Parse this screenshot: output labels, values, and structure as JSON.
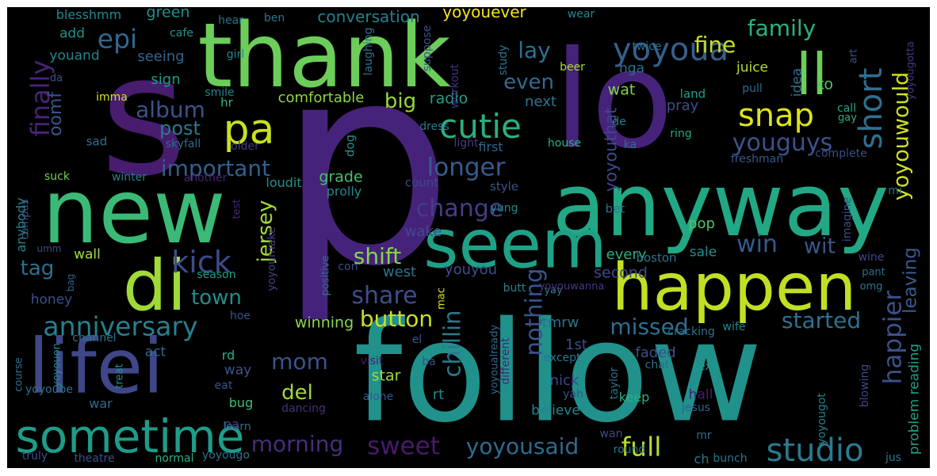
{
  "wordcloud": {
    "words": [
      {
        "t": "p",
        "c": "#46237a"
      },
      {
        "t": "follow",
        "c": "#21918c"
      },
      {
        "t": "s",
        "c": "#481c6e"
      },
      {
        "t": "lo",
        "c": "#46237a"
      },
      {
        "t": "thank",
        "c": "#6ccd5a"
      },
      {
        "t": "new",
        "c": "#3aba76"
      },
      {
        "t": "anyway",
        "c": "#22a884"
      },
      {
        "t": "happen",
        "c": "#c2df23"
      },
      {
        "t": "lifei",
        "c": "#3f4788"
      },
      {
        "t": "seem",
        "c": "#1fa187"
      },
      {
        "t": "di",
        "c": "#a0da39"
      },
      {
        "t": "sometime",
        "c": "#1e9c89"
      },
      {
        "t": "ll",
        "c": "#6ece58"
      },
      {
        "t": "pa",
        "c": "#c8e020"
      },
      {
        "t": "yoyoua",
        "c": "#355f8d"
      },
      {
        "t": "cutie",
        "c": "#2ab07f"
      },
      {
        "t": "snap",
        "c": "#dde318"
      },
      {
        "t": "short",
        "c": "#2d708e"
      },
      {
        "t": "studio",
        "c": "#297b8e"
      },
      {
        "t": "anniversary",
        "c": "#277f8e"
      },
      {
        "t": "kick",
        "c": "#3e4c8a"
      },
      {
        "t": "youguys",
        "c": "#3b528b"
      },
      {
        "t": "yoyouwould",
        "c": "#d0e11c"
      },
      {
        "t": "epi",
        "c": "#31688e"
      },
      {
        "t": "longer",
        "c": "#365c8d"
      },
      {
        "t": "finally",
        "c": "#482475"
      },
      {
        "t": "important",
        "c": "#345f8d"
      },
      {
        "t": "change",
        "c": "#433e85"
      },
      {
        "t": "button",
        "c": "#cae11f"
      },
      {
        "t": "happier",
        "c": "#3b528b"
      },
      {
        "t": "share",
        "c": "#3d4e8a"
      },
      {
        "t": "morning",
        "c": "#472d7b"
      },
      {
        "t": "sweet",
        "c": "#481a6c"
      },
      {
        "t": "yoyousaid",
        "c": "#2f6b8e"
      },
      {
        "t": "full",
        "c": "#b5de2b"
      },
      {
        "t": "missed",
        "c": "#2e6e8e"
      },
      {
        "t": "started",
        "c": "#2c728e"
      },
      {
        "t": "leaving",
        "c": "#38598c"
      },
      {
        "t": "nothing",
        "c": "#3a548c"
      },
      {
        "t": "chillin",
        "c": "#2a788e"
      },
      {
        "t": "shift",
        "c": "#85d54a"
      },
      {
        "t": "jersey",
        "c": "#a5db36"
      },
      {
        "t": "mom",
        "c": "#3b528b"
      },
      {
        "t": "del",
        "c": "#a2da37"
      },
      {
        "t": "town",
        "c": "#228d8d"
      },
      {
        "t": "post",
        "c": "#29798e"
      },
      {
        "t": "family",
        "c": "#2db27d"
      },
      {
        "t": "album",
        "c": "#3b528b"
      },
      {
        "t": "fine",
        "c": "#c8e020"
      },
      {
        "t": "tag",
        "c": "#2e6f8e"
      },
      {
        "t": "win",
        "c": "#38598c"
      },
      {
        "t": "wit",
        "c": "#39568c"
      },
      {
        "t": "even",
        "c": "#2f6c8e"
      },
      {
        "t": "lay",
        "c": "#2d718e"
      },
      {
        "t": "big",
        "c": "#95d840"
      },
      {
        "t": "oomf",
        "c": "#39558c"
      },
      {
        "t": "yoyouthat",
        "c": "#3f4889"
      },
      {
        "t": "problem reading",
        "c": "#1f9f88"
      },
      {
        "t": "conversation",
        "c": "#277f8e"
      },
      {
        "t": "yoyouever",
        "c": "#f1e51d"
      },
      {
        "t": "green",
        "c": "#1f948c"
      },
      {
        "t": "blesshmm",
        "c": "#238a8d"
      },
      {
        "t": "add",
        "c": "#20928c"
      },
      {
        "t": "youand",
        "c": "#25848e"
      },
      {
        "t": "seeing",
        "c": "#32658e"
      },
      {
        "t": "sign",
        "c": "#1e9b8a"
      },
      {
        "t": "comfortable",
        "c": "#8ed645"
      },
      {
        "t": "radio",
        "c": "#1fa088"
      },
      {
        "t": "next",
        "c": "#2a768e"
      },
      {
        "t": "pray",
        "c": "#3d4d8a"
      },
      {
        "t": "wat",
        "c": "#83d34b"
      },
      {
        "t": "nga",
        "c": "#2c718e"
      },
      {
        "t": "juice",
        "c": "#b2dd2d"
      },
      {
        "t": "idea",
        "c": "#2c728e"
      },
      {
        "t": "ko",
        "c": "#52c569"
      },
      {
        "t": "cafe",
        "c": "#1f988b"
      },
      {
        "t": "wear",
        "c": "#24868e"
      },
      {
        "t": "hear",
        "c": "#2c728e"
      },
      {
        "t": "ben",
        "c": "#2a768e"
      },
      {
        "t": "girl",
        "c": "#25858e"
      },
      {
        "t": "twice",
        "c": "#2e6e8e"
      },
      {
        "t": "second",
        "c": "#3e4a89"
      },
      {
        "t": "grade",
        "c": "#4ac16d"
      },
      {
        "t": "winning",
        "c": "#8bd646"
      },
      {
        "t": "west",
        "c": "#2b748e"
      },
      {
        "t": "youyou",
        "c": "#3c4f8a"
      },
      {
        "t": "every",
        "c": "#2ab07f"
      },
      {
        "t": "wake",
        "c": "#3e4c8a"
      },
      {
        "t": "sale",
        "c": "#21918c"
      },
      {
        "t": "pop",
        "c": "#50c46a"
      },
      {
        "t": "bet",
        "c": "#2c728e"
      },
      {
        "t": "boston",
        "c": "#2b748e"
      },
      {
        "t": "wall",
        "c": "#a5db36"
      },
      {
        "t": "anybody",
        "c": "#24878e"
      },
      {
        "t": "honey",
        "c": "#3d4e8a"
      },
      {
        "t": "season",
        "c": "#1f9e89"
      },
      {
        "t": "prolly",
        "c": "#24878e"
      },
      {
        "t": "count",
        "c": "#3f4788"
      },
      {
        "t": "style",
        "c": "#3b528b"
      },
      {
        "t": "yung",
        "c": "#24878e"
      },
      {
        "t": "loudit",
        "c": "#20928c"
      },
      {
        "t": "dog",
        "c": "#21918c"
      },
      {
        "t": "first",
        "c": "#32658e"
      },
      {
        "t": "light",
        "c": "#423f85"
      },
      {
        "t": "house",
        "c": "#2ab07f"
      },
      {
        "t": "complete",
        "c": "#3e4a89"
      },
      {
        "t": "freshman",
        "c": "#39568c"
      },
      {
        "t": "ring",
        "c": "#22a884"
      },
      {
        "t": "land",
        "c": "#1fa088"
      },
      {
        "t": "call",
        "c": "#20a486"
      },
      {
        "t": "gay",
        "c": "#2db27d"
      },
      {
        "t": "mi",
        "c": "#2c728e"
      },
      {
        "t": "pull",
        "c": "#306a8e"
      },
      {
        "t": "smile",
        "c": "#25838e"
      },
      {
        "t": "workout",
        "c": "#453581"
      },
      {
        "t": "hr",
        "c": "#32b67a"
      },
      {
        "t": "imma",
        "c": "#d2e21b"
      },
      {
        "t": "da",
        "c": "#3a548c"
      },
      {
        "t": "sad",
        "c": "#2d708e"
      },
      {
        "t": "skyfall",
        "c": "#2f6c8e"
      },
      {
        "t": "older",
        "c": "#433d84"
      },
      {
        "t": "beer",
        "c": "#a8db34"
      },
      {
        "t": "dress",
        "c": "#2a778e"
      },
      {
        "t": "de",
        "c": "#25838e"
      },
      {
        "t": "ka",
        "c": "#2e6d8e"
      },
      {
        "t": "suck",
        "c": "#75d054"
      },
      {
        "t": "winter",
        "c": "#26818e"
      },
      {
        "t": "another",
        "c": "#482071"
      },
      {
        "t": "campus",
        "c": "#3b528b"
      },
      {
        "t": "umm",
        "c": "#3e4989"
      },
      {
        "t": "bag",
        "c": "#33628d"
      },
      {
        "t": "positive",
        "c": "#2b748e"
      },
      {
        "t": "con",
        "c": "#3e4c8a"
      },
      {
        "t": "yoyoumake",
        "c": "#423f85"
      },
      {
        "t": "test",
        "c": "#482677"
      },
      {
        "t": "imagine",
        "c": "#3c4f8a"
      },
      {
        "t": "wine",
        "c": "#3f4889"
      },
      {
        "t": "pant",
        "c": "#2e6d8e"
      },
      {
        "t": "omg",
        "c": "#29798e"
      },
      {
        "t": "yay",
        "c": "#2b758e"
      },
      {
        "t": "butt",
        "c": "#26828e"
      },
      {
        "t": "yoyouwanna",
        "c": "#453781"
      },
      {
        "t": "mac",
        "c": "#dae319"
      },
      {
        "t": "yoyoualready",
        "c": "#31688e"
      },
      {
        "t": "1st",
        "c": "#3c4f8a"
      },
      {
        "t": "tmrw",
        "c": "#2c728e"
      },
      {
        "t": "rd",
        "c": "#2ab07f"
      },
      {
        "t": "way",
        "c": "#3a548c"
      },
      {
        "t": "act",
        "c": "#31688e"
      },
      {
        "t": "hoe",
        "c": "#3a548c"
      },
      {
        "t": "channel",
        "c": "#2b748e"
      },
      {
        "t": "course",
        "c": "#2d708e"
      },
      {
        "t": "yoyouon",
        "c": "#24878e"
      },
      {
        "t": "treat",
        "c": "#1f958b"
      },
      {
        "t": "yoyoube",
        "c": "#2d708e"
      },
      {
        "t": "eat",
        "c": "#3a548c"
      },
      {
        "t": "bug",
        "c": "#40bd72"
      },
      {
        "t": "war",
        "c": "#31688e"
      },
      {
        "t": "learn",
        "c": "#2c728e"
      },
      {
        "t": "dancing",
        "c": "#472f7d"
      },
      {
        "t": "star",
        "c": "#a2da37"
      },
      {
        "t": "rt",
        "c": "#23888e"
      },
      {
        "t": "na",
        "c": "#433e85"
      },
      {
        "t": "visit",
        "c": "#481b6d"
      },
      {
        "t": "alone",
        "c": "#38598c"
      },
      {
        "t": "el",
        "c": "#3a548c"
      },
      {
        "t": "ba",
        "c": "#3c4f8a"
      },
      {
        "t": "different",
        "c": "#482374"
      },
      {
        "t": "except",
        "c": "#2b748e"
      },
      {
        "t": "faded",
        "c": "#3d4e8a"
      },
      {
        "t": "nick",
        "c": "#3f4889"
      },
      {
        "t": "yah",
        "c": "#3c4f8a"
      },
      {
        "t": "believe",
        "c": "#25858e"
      },
      {
        "t": "keep",
        "c": "#2ab07f"
      },
      {
        "t": "hall",
        "c": "#481d6f"
      },
      {
        "t": "taylor",
        "c": "#2d708e"
      },
      {
        "t": "chat",
        "c": "#2e6d8e"
      },
      {
        "t": "cracking",
        "c": "#2c728e"
      },
      {
        "t": "wife",
        "c": "#23898e"
      },
      {
        "t": "sexy",
        "c": "#1e9b8a"
      },
      {
        "t": "jesus",
        "c": "#32658e"
      },
      {
        "t": "yoyougot",
        "c": "#25838e"
      },
      {
        "t": "blowing",
        "c": "#3e4989"
      },
      {
        "t": "mr",
        "c": "#2e6d8e"
      },
      {
        "t": "ch",
        "c": "#2a778e"
      },
      {
        "t": "wan",
        "c": "#3f4889"
      },
      {
        "t": "round",
        "c": "#2a778e"
      },
      {
        "t": "bunch",
        "c": "#2b748e"
      },
      {
        "t": "jus",
        "c": "#29798e"
      },
      {
        "t": "truly",
        "c": "#3b528b"
      },
      {
        "t": "theatre",
        "c": "#3c4f8a"
      },
      {
        "t": "normal",
        "c": "#2ab07f"
      },
      {
        "t": "yoyougo",
        "c": "#2c718e"
      },
      {
        "t": "laughing",
        "c": "#2d708e"
      },
      {
        "t": "suppose",
        "c": "#3a548c"
      },
      {
        "t": "study",
        "c": "#2c728e"
      },
      {
        "t": "art",
        "c": "#3d4e8a"
      },
      {
        "t": "yoyougotta",
        "c": "#453882"
      }
    ]
  }
}
